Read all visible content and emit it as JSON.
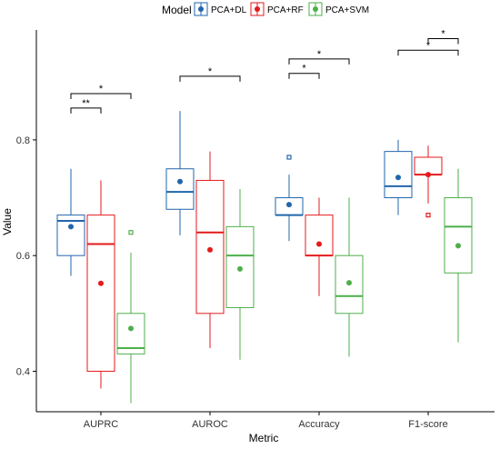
{
  "chart_data": {
    "type": "boxplot",
    "xlabel": "Metric",
    "ylabel": "Value",
    "ylim": [
      0.33,
      0.99
    ],
    "yticks": [
      "0.4",
      "0.6",
      "0.8"
    ],
    "ytick_values": [
      0.4,
      0.6,
      0.8
    ],
    "grid": false,
    "legend": {
      "title": "Model",
      "placement": "top",
      "entries": [
        "PCA+DL",
        "PCA+RF",
        "PCA+SVM"
      ]
    },
    "categories": [
      "AUPRC",
      "AUROC",
      "Accuracy",
      "F1-score"
    ],
    "series": [
      {
        "name": "PCA+DL",
        "color": "#2166ac",
        "boxes": [
          {
            "whisker_low": 0.565,
            "q1": 0.6,
            "median": 0.66,
            "q3": 0.67,
            "whisker_high": 0.75,
            "mean": 0.65,
            "outliers": []
          },
          {
            "whisker_low": 0.635,
            "q1": 0.68,
            "median": 0.71,
            "q3": 0.75,
            "whisker_high": 0.85,
            "mean": 0.728,
            "outliers": []
          },
          {
            "whisker_low": 0.625,
            "q1": 0.67,
            "median": 0.67,
            "q3": 0.7,
            "whisker_high": 0.74,
            "mean": 0.688,
            "outliers": [
              0.77
            ]
          },
          {
            "whisker_low": 0.67,
            "q1": 0.7,
            "median": 0.72,
            "q3": 0.78,
            "whisker_high": 0.8,
            "mean": 0.735,
            "outliers": []
          }
        ]
      },
      {
        "name": "PCA+RF",
        "color": "#e41a1c",
        "boxes": [
          {
            "whisker_low": 0.37,
            "q1": 0.4,
            "median": 0.62,
            "q3": 0.67,
            "whisker_high": 0.73,
            "mean": 0.552,
            "outliers": []
          },
          {
            "whisker_low": 0.44,
            "q1": 0.5,
            "median": 0.64,
            "q3": 0.73,
            "whisker_high": 0.78,
            "mean": 0.61,
            "outliers": []
          },
          {
            "whisker_low": 0.53,
            "q1": 0.6,
            "median": 0.6,
            "q3": 0.67,
            "whisker_high": 0.7,
            "mean": 0.62,
            "outliers": []
          },
          {
            "whisker_low": 0.69,
            "q1": 0.74,
            "median": 0.74,
            "q3": 0.77,
            "whisker_high": 0.79,
            "mean": 0.74,
            "outliers": [
              0.67
            ]
          }
        ]
      },
      {
        "name": "PCA+SVM",
        "color": "#4daf4a",
        "boxes": [
          {
            "whisker_low": 0.345,
            "q1": 0.43,
            "median": 0.44,
            "q3": 0.5,
            "whisker_high": 0.605,
            "mean": 0.474,
            "outliers": [
              0.64
            ]
          },
          {
            "whisker_low": 0.42,
            "q1": 0.51,
            "median": 0.6,
            "q3": 0.65,
            "whisker_high": 0.715,
            "mean": 0.577,
            "outliers": []
          },
          {
            "whisker_low": 0.425,
            "q1": 0.5,
            "median": 0.53,
            "q3": 0.6,
            "whisker_high": 0.7,
            "mean": 0.553,
            "outliers": []
          },
          {
            "whisker_low": 0.45,
            "q1": 0.57,
            "median": 0.65,
            "q3": 0.7,
            "whisker_high": 0.75,
            "mean": 0.617,
            "outliers": []
          }
        ]
      }
    ],
    "significance": [
      {
        "category": "AUPRC",
        "from": "PCA+DL",
        "to": "PCA+SVM",
        "label": "*",
        "level": 0.88
      },
      {
        "category": "AUPRC",
        "from": "PCA+DL",
        "to": "PCA+RF",
        "label": "**",
        "level": 0.855
      },
      {
        "category": "AUROC",
        "from": "PCA+DL",
        "to": "PCA+SVM",
        "label": "*",
        "level": 0.91
      },
      {
        "category": "Accuracy",
        "from": "PCA+DL",
        "to": "PCA+SVM",
        "label": "*",
        "level": 0.94
      },
      {
        "category": "Accuracy",
        "from": "PCA+DL",
        "to": "PCA+RF",
        "label": "*",
        "level": 0.915
      },
      {
        "category": "F1-score",
        "from": "PCA+DL",
        "to": "PCA+SVM",
        "label": "*",
        "level": 0.955
      },
      {
        "category": "F1-score",
        "from": "PCA+RF",
        "to": "PCA+SVM",
        "label": "*",
        "level": 0.975
      }
    ]
  }
}
